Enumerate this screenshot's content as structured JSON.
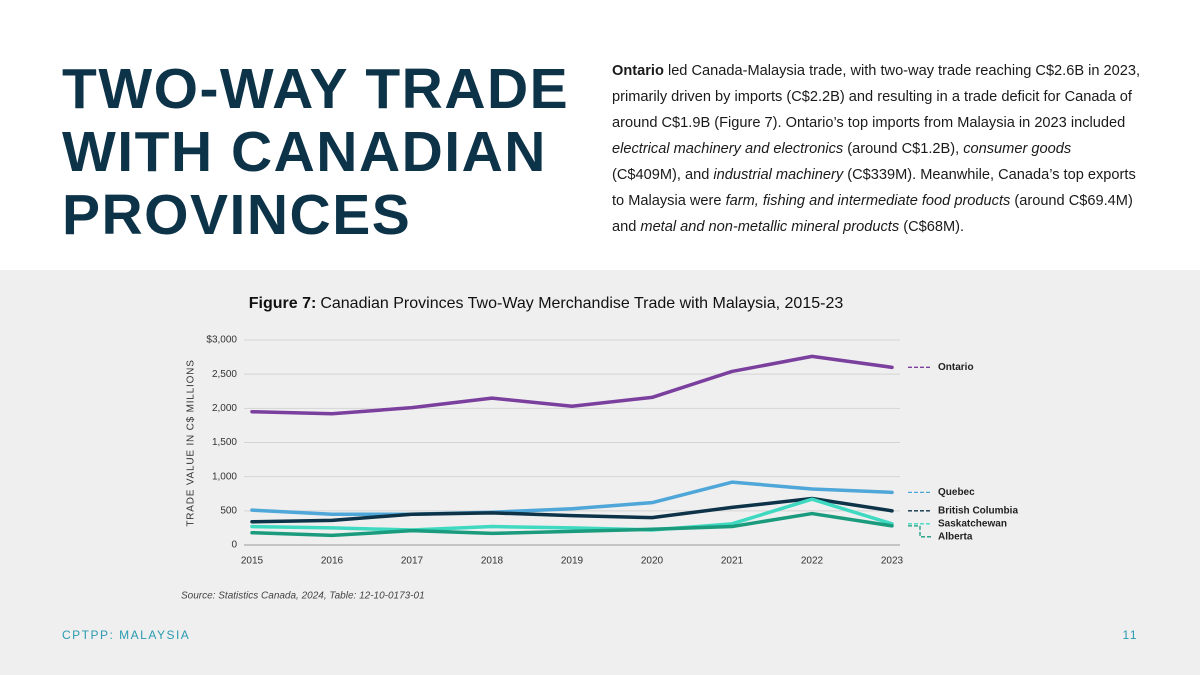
{
  "header": {
    "title": [
      "TWO-WAY TRADE",
      "WITH CANADIAN",
      "PROVINCES"
    ]
  },
  "paragraph": [
    {
      "text": "Ontario",
      "style": "bold"
    },
    " led Canada-Malaysia trade, with two-way trade reaching C$2.6B in 2023, primarily driven by imports (C$2.2B) and resulting in a trade deficit for Canada of around C$1.9B (Figure 7). Ontario’s top imports from Malaysia in 2023 included ",
    {
      "text": "electrical machinery and electronics",
      "style": "italic"
    },
    " (around C$1.2B), ",
    {
      "text": "consumer goods",
      "style": "italic"
    },
    " (C$409M), and ",
    {
      "text": "industrial machinery",
      "style": "italic"
    },
    " (C$339M). Meanwhile, Canada’s top exports to Malaysia were ",
    {
      "text": "farm, fishing and intermediate food products",
      "style": "italic"
    },
    " (around C$69.4M) and ",
    {
      "text": "metal and non-metallic mineral products",
      "style": "italic"
    },
    " (C$68M)."
  ],
  "chart_data": {
    "type": "line",
    "title_prefix": "Figure 7:",
    "title": "Canadian Provinces Two-Way Merchandise Trade with Malaysia, 2015-23",
    "y_label": "TRADE VALUE IN C$ MILLIONS",
    "categories": [
      "2015",
      "2016",
      "2017",
      "2018",
      "2019",
      "2020",
      "2021",
      "2022",
      "2023"
    ],
    "ylim": [
      0,
      3000
    ],
    "yticks": [
      0,
      500,
      {
        "value": 1000,
        "label": "1,000"
      },
      {
        "value": 1500,
        "label": "1,500"
      },
      {
        "value": 2000,
        "label": "2,000"
      },
      {
        "value": 2500,
        "label": "2,500"
      },
      {
        "value": 3000,
        "label": "$3,000"
      }
    ],
    "grid": true,
    "series": [
      {
        "name": "Ontario",
        "color": "#7b3f9e",
        "values": [
          1950,
          1920,
          2010,
          2150,
          2030,
          2160,
          2540,
          2760,
          2600
        ]
      },
      {
        "name": "Quebec",
        "color": "#4ea7d8",
        "values": [
          510,
          450,
          450,
          480,
          530,
          620,
          920,
          820,
          770
        ]
      },
      {
        "name": "British Columbia",
        "color": "#0d3349",
        "values": [
          340,
          360,
          450,
          470,
          430,
          400,
          550,
          680,
          500
        ]
      },
      {
        "name": "Saskatchewan",
        "color": "#3fd9c1",
        "values": [
          270,
          250,
          220,
          270,
          250,
          220,
          310,
          670,
          310
        ]
      },
      {
        "name": "Alberta",
        "color": "#1a9b7d",
        "values": [
          180,
          140,
          210,
          170,
          200,
          230,
          270,
          460,
          280
        ]
      }
    ],
    "source": "Source: Statistics Canada, 2024, Table: 12-10-0173-01"
  },
  "footer": {
    "left": "CPTPP: MALAYSIA",
    "right": "11"
  }
}
